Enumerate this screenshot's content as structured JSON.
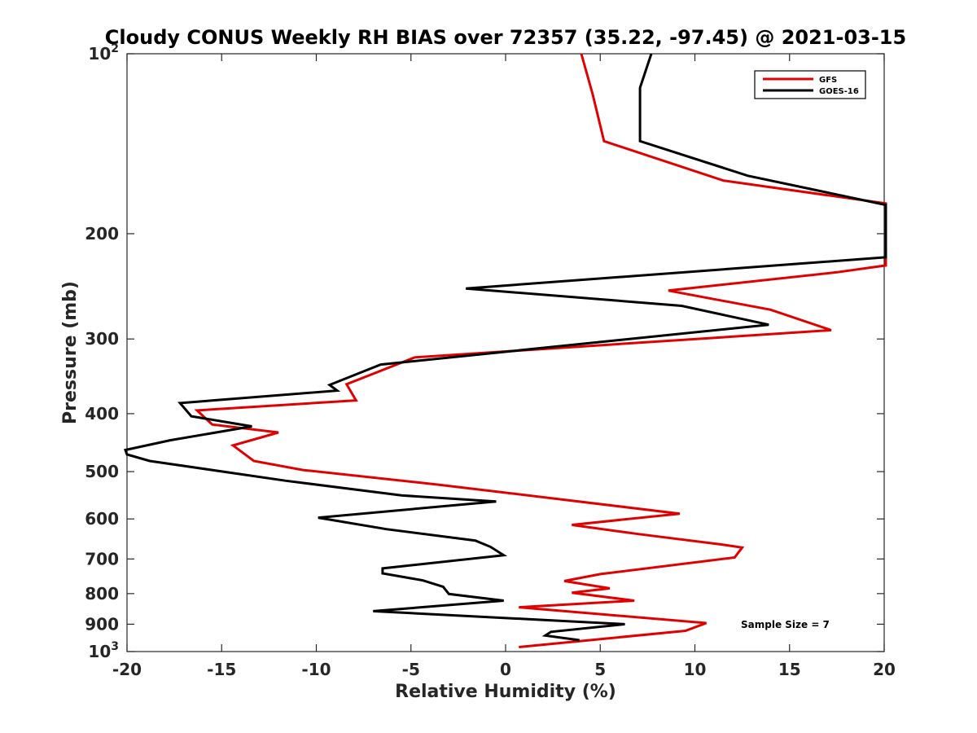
{
  "chart_data": {
    "type": "line",
    "title": "Cloudy CONUS Weekly RH BIAS over 72357 (35.22, -97.45) @ 2021-03-15",
    "xlabel": "Relative Humidity (%)",
    "ylabel": "Pressure (mb)",
    "xlim": [
      -20,
      20
    ],
    "ylim": [
      100,
      1000
    ],
    "y_scale": "log",
    "y_reversed": true,
    "x_ticks": [
      "-20",
      "-15",
      "-10",
      "-5",
      "0",
      "5",
      "10",
      "15",
      "20"
    ],
    "y_ticks": [
      {
        "value": 100,
        "base": "10",
        "exp": "2"
      },
      {
        "value": 200,
        "label": "200"
      },
      {
        "value": 300,
        "label": "300"
      },
      {
        "value": 400,
        "label": "400"
      },
      {
        "value": 500,
        "label": "500"
      },
      {
        "value": 600,
        "label": "600"
      },
      {
        "value": 700,
        "label": "700"
      },
      {
        "value": 800,
        "label": "800"
      },
      {
        "value": 900,
        "label": "900"
      },
      {
        "value": 1000,
        "base": "10",
        "exp": "3"
      }
    ],
    "grid": false,
    "legend_position": "top-right",
    "annotation": "Sample Size = 7",
    "series": [
      {
        "name": "GFS",
        "color": "#e00000",
        "points": [
          [
            4.0,
            100
          ],
          [
            4.6,
            117
          ],
          [
            5.2,
            140
          ],
          [
            11.5,
            163
          ],
          [
            20.2,
            178
          ],
          [
            20.3,
            226
          ],
          [
            17.5,
            232
          ],
          [
            8.6,
            249
          ],
          [
            14.0,
            268
          ],
          [
            17.2,
            290
          ],
          [
            -4.8,
            322
          ],
          [
            -8.4,
            357
          ],
          [
            -7.9,
            380
          ],
          [
            -16.3,
            395
          ],
          [
            -15.5,
            417
          ],
          [
            -12.0,
            430
          ],
          [
            -14.4,
            452
          ],
          [
            -13.3,
            480
          ],
          [
            -10.7,
            497
          ],
          [
            -3.5,
            526
          ],
          [
            9.2,
            588
          ],
          [
            3.5,
            614
          ],
          [
            7.0,
            636
          ],
          [
            11.4,
            662
          ],
          [
            12.5,
            670
          ],
          [
            12.1,
            696
          ],
          [
            5.0,
            742
          ],
          [
            3.1,
            762
          ],
          [
            5.5,
            784
          ],
          [
            3.5,
            797
          ],
          [
            6.8,
            822
          ],
          [
            0.7,
            843
          ],
          [
            10.6,
            896
          ],
          [
            9.5,
            923
          ],
          [
            0.7,
            983
          ]
        ]
      },
      {
        "name": "GOES-16",
        "color": "#000000",
        "points": [
          [
            7.7,
            100
          ],
          [
            7.1,
            114
          ],
          [
            7.1,
            140
          ],
          [
            12.8,
            160
          ],
          [
            20.2,
            179
          ],
          [
            20.3,
            219
          ],
          [
            -2.1,
            247
          ],
          [
            9.3,
            264
          ],
          [
            13.9,
            284
          ],
          [
            -6.6,
            331
          ],
          [
            -9.3,
            358
          ],
          [
            -8.9,
            366
          ],
          [
            -17.2,
            384
          ],
          [
            -16.6,
            404
          ],
          [
            -13.4,
            420
          ],
          [
            -17.7,
            443
          ],
          [
            -20.3,
            460
          ],
          [
            -20.0,
            468
          ],
          [
            -18.8,
            480
          ],
          [
            -11.6,
            518
          ],
          [
            -5.5,
            548
          ],
          [
            -0.5,
            561
          ],
          [
            -9.9,
            597
          ],
          [
            -6.3,
            624
          ],
          [
            -1.6,
            652
          ],
          [
            -0.8,
            668
          ],
          [
            -0.1,
            690
          ],
          [
            -6.5,
            726
          ],
          [
            -6.5,
            740
          ],
          [
            -4.4,
            760
          ],
          [
            -3.3,
            779
          ],
          [
            -3.0,
            801
          ],
          [
            -0.1,
            822
          ],
          [
            -7.0,
            856
          ],
          [
            6.3,
            900
          ],
          [
            2.4,
            927
          ],
          [
            2.1,
            940
          ],
          [
            3.9,
            957
          ]
        ]
      }
    ]
  }
}
